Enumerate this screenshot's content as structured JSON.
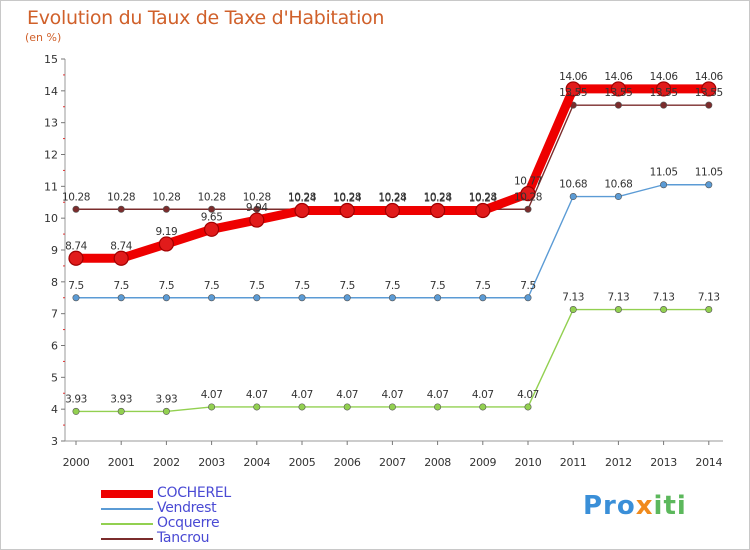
{
  "header": {
    "title": "Evolution du Taux de Taxe d'Habitation",
    "unit": "(en %)"
  },
  "logo": {
    "parts": [
      "Pro",
      "x",
      "iti"
    ],
    "colors": [
      "#3a8fd8",
      "#f08a1c",
      "#5cb85c"
    ]
  },
  "chart_data": {
    "type": "line",
    "categories": [
      "2000",
      "2001",
      "2002",
      "2003",
      "2004",
      "2005",
      "2006",
      "2007",
      "2008",
      "2009",
      "2010",
      "2011",
      "2012",
      "2013",
      "2014"
    ],
    "ylim": [
      3,
      15
    ],
    "yticks": [
      "3",
      "4",
      "5",
      "6",
      "7",
      "8",
      "9",
      "10",
      "11",
      "12",
      "13",
      "14",
      "15"
    ],
    "grid": false,
    "legend_position": "bottom-left",
    "series": [
      {
        "name": "COCHEREL",
        "color": "#ee0000",
        "values": [
          8.74,
          8.74,
          9.19,
          9.65,
          9.94,
          10.24,
          10.24,
          10.24,
          10.24,
          10.24,
          10.77,
          14.06,
          14.06,
          14.06,
          14.06
        ],
        "labels": [
          "8.74",
          "8.74",
          "9.19",
          "9.65",
          "9.94",
          "10.24",
          "10.24",
          "10.24",
          "10.24",
          "10.24",
          "10.77",
          "14.06",
          "14.06",
          "14.06",
          "14.06"
        ]
      },
      {
        "name": "Vendrest",
        "color": "#5b9bd5",
        "values": [
          7.5,
          7.5,
          7.5,
          7.5,
          7.5,
          7.5,
          7.5,
          7.5,
          7.5,
          7.5,
          7.5,
          10.68,
          10.68,
          11.05,
          11.05
        ],
        "labels": [
          "7.5",
          "7.5",
          "7.5",
          "7.5",
          "7.5",
          "7.5",
          "7.5",
          "7.5",
          "7.5",
          "7.5",
          "7.5",
          "10.68",
          "10.68",
          "11.05",
          "11.05"
        ]
      },
      {
        "name": "Ocquerre",
        "color": "#92d050",
        "values": [
          3.93,
          3.93,
          3.93,
          4.07,
          4.07,
          4.07,
          4.07,
          4.07,
          4.07,
          4.07,
          4.07,
          7.13,
          7.13,
          7.13,
          7.13
        ],
        "labels": [
          "3.93",
          "3.93",
          "3.93",
          "4.07",
          "4.07",
          "4.07",
          "4.07",
          "4.07",
          "4.07",
          "4.07",
          "4.07",
          "7.13",
          "7.13",
          "7.13",
          "7.13"
        ]
      },
      {
        "name": "Tancrou",
        "color": "#7b2c2c",
        "values": [
          10.28,
          10.28,
          10.28,
          10.28,
          10.28,
          10.28,
          10.28,
          10.28,
          10.28,
          10.28,
          10.28,
          13.55,
          13.55,
          13.55,
          13.55
        ],
        "labels": [
          "10.28",
          "10.28",
          "10.28",
          "10.28",
          "10.28",
          "10.28",
          "10.28",
          "10.28",
          "10.28",
          "10.28",
          "10.28",
          "13.55",
          "13.55",
          "13.55",
          "13.55"
        ]
      }
    ]
  }
}
